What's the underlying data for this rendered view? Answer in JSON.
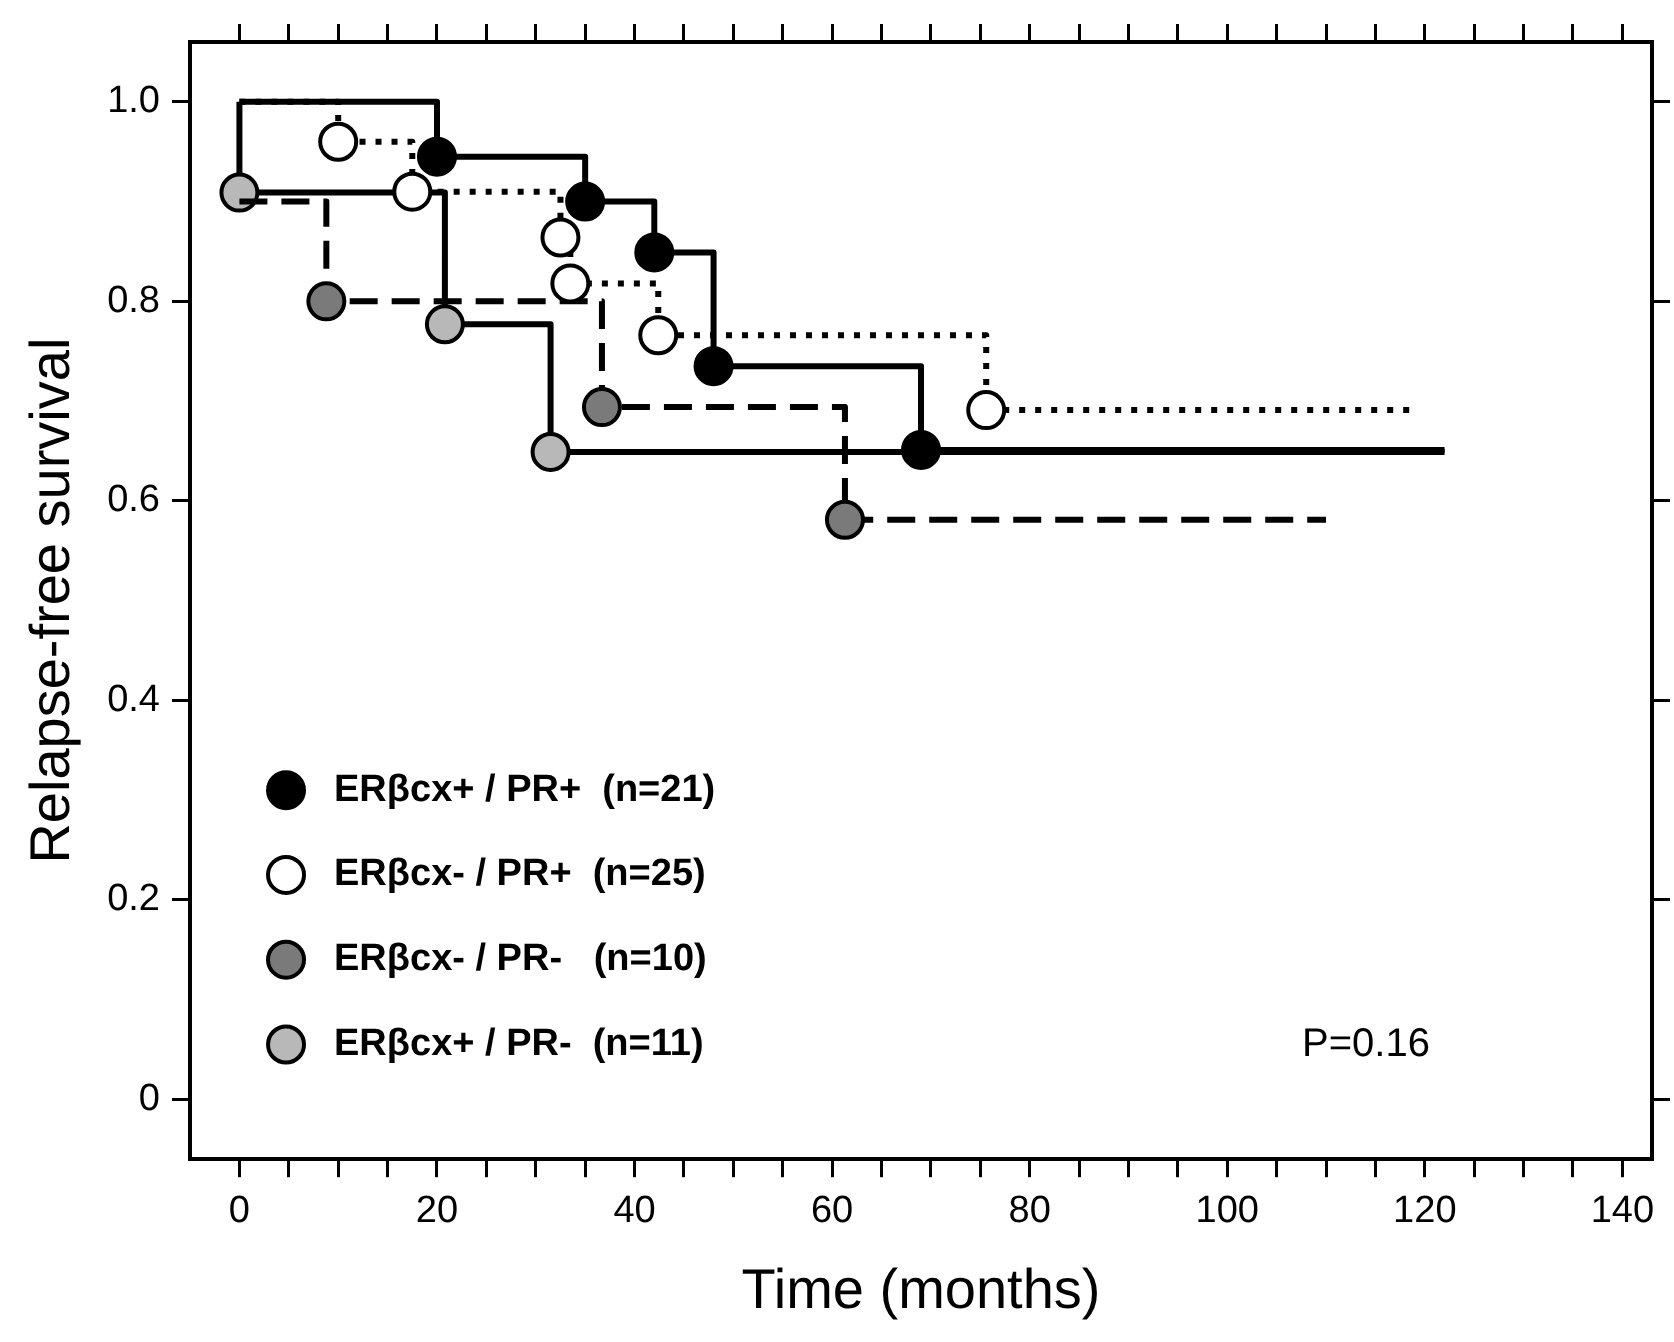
{
  "chart_data": {
    "type": "step",
    "xlabel": "Time (months)",
    "ylabel": "Relapse-free survival",
    "xlim": [
      -5,
      143
    ],
    "ylim": [
      -0.06,
      1.06
    ],
    "xticks": [
      0,
      {
        "value": 5,
        "label": null
      },
      {
        "value": 10,
        "label": null
      },
      {
        "value": 15,
        "label": null
      },
      20,
      {
        "value": 25,
        "label": null
      },
      {
        "value": 30,
        "label": null
      },
      {
        "value": 35,
        "label": null
      },
      40,
      {
        "value": 45,
        "label": null
      },
      {
        "value": 50,
        "label": null
      },
      {
        "value": 55,
        "label": null
      },
      60,
      {
        "value": 65,
        "label": null
      },
      {
        "value": 70,
        "label": null
      },
      {
        "value": 75,
        "label": null
      },
      80,
      {
        "value": 85,
        "label": null
      },
      {
        "value": 90,
        "label": null
      },
      {
        "value": 95,
        "label": null
      },
      100,
      {
        "value": 105,
        "label": null
      },
      {
        "value": 110,
        "label": null
      },
      {
        "value": 115,
        "label": null
      },
      120,
      {
        "value": 125,
        "label": null
      },
      {
        "value": 130,
        "label": null
      },
      {
        "value": 135,
        "label": null
      },
      140
    ],
    "yticks": [
      0,
      0.2,
      0.4,
      0.6,
      0.8,
      {
        "value": 1,
        "label": "1.0"
      }
    ],
    "grid": false,
    "legend": "bottom left",
    "marker": "circle",
    "series": [
      {
        "name": "ERβcx+ / PR+  (n=21)",
        "color": "#000000",
        "line_style": "solid",
        "x": [
          0,
          20,
          35,
          42,
          48,
          69,
          122
        ],
        "values": [
          1.0,
          0.945,
          0.9,
          0.849,
          0.735,
          0.651,
          0.651
        ]
      },
      {
        "name": "ERβcx- / PR+  (n=25)",
        "color": "#000000",
        "line_style": "dotted",
        "x": [
          0,
          10,
          17.5,
          32.5,
          33.5,
          42.4,
          75.6,
          118.5
        ],
        "values": [
          1.0,
          0.96,
          0.91,
          0.864,
          0.818,
          0.766,
          0.691,
          0.691
        ]
      },
      {
        "name": "ERβcx- / PR-   (n=10)",
        "color": "#000000",
        "line_style": "dashed",
        "x": [
          0,
          8.8,
          36.7,
          61.3,
          110
        ],
        "values": [
          0.9,
          0.8,
          0.694,
          0.581,
          0.581
        ]
      },
      {
        "name": "ERβcx+ / PR-  (n=11)",
        "color": "#000000",
        "line_style": "solid",
        "x": [
          0,
          0,
          20.8,
          31.5,
          122
        ],
        "values": [
          1.0,
          0.909,
          0.777,
          0.649,
          0.649
        ]
      }
    ],
    "annotations": [
      "P=0.16"
    ]
  }
}
